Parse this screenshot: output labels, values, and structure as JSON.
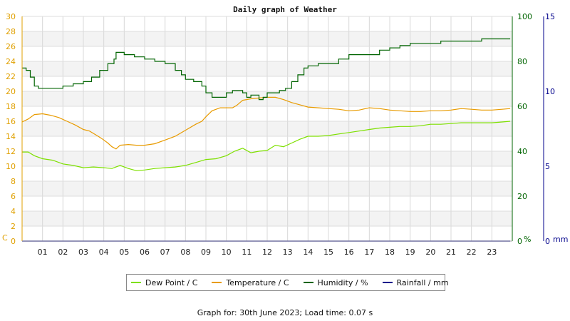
{
  "chart_data": {
    "type": "line",
    "title": "Daily graph of Weather",
    "x_ticks": [
      "01",
      "02",
      "03",
      "04",
      "05",
      "06",
      "07",
      "08",
      "09",
      "10",
      "11",
      "12",
      "13",
      "14",
      "15",
      "16",
      "17",
      "18",
      "19",
      "20",
      "21",
      "22",
      "23"
    ],
    "xlim": [
      0,
      24
    ],
    "left_axis": {
      "unit": "C",
      "range": [
        0,
        30
      ],
      "ticks": [
        0,
        2,
        4,
        6,
        8,
        10,
        12,
        14,
        16,
        18,
        20,
        22,
        24,
        26,
        28,
        30
      ],
      "color": "#e0a000"
    },
    "right_axis_humidity": {
      "unit": "%",
      "range": [
        0,
        100
      ],
      "ticks": [
        0,
        20,
        40,
        60,
        80,
        100
      ],
      "color": "#006400"
    },
    "right_axis_rain": {
      "unit": "mm",
      "range": [
        0,
        15
      ],
      "ticks": [
        0,
        5,
        10,
        15
      ],
      "color": "#00008b"
    },
    "grid": true,
    "legend_position": "bottom",
    "series": [
      {
        "name": "Dew Point / C",
        "color": "#7ee000",
        "axis": "left",
        "x": [
          0,
          0.3,
          0.6,
          1.0,
          1.5,
          2.0,
          2.5,
          3.0,
          3.5,
          4.0,
          4.4,
          4.8,
          5.2,
          5.6,
          6.0,
          6.5,
          7.0,
          7.5,
          8.0,
          8.5,
          9.0,
          9.5,
          10.0,
          10.4,
          10.8,
          11.2,
          11.6,
          12.0,
          12.4,
          12.8,
          13.2,
          13.6,
          14.0,
          14.5,
          15.0,
          15.5,
          16.0,
          16.5,
          17.0,
          17.5,
          18.0,
          18.5,
          19.0,
          19.5,
          20.0,
          20.5,
          21.0,
          21.5,
          22.0,
          22.5,
          23.0,
          23.5,
          23.9
        ],
        "y": [
          11.9,
          11.9,
          11.4,
          11.0,
          10.8,
          10.3,
          10.1,
          9.8,
          9.9,
          9.8,
          9.7,
          10.1,
          9.7,
          9.4,
          9.5,
          9.7,
          9.8,
          9.9,
          10.1,
          10.5,
          10.9,
          11.0,
          11.4,
          12.0,
          12.4,
          11.8,
          12.0,
          12.1,
          12.8,
          12.6,
          13.1,
          13.6,
          14.0,
          14.0,
          14.1,
          14.3,
          14.5,
          14.7,
          14.9,
          15.1,
          15.2,
          15.3,
          15.3,
          15.4,
          15.6,
          15.6,
          15.7,
          15.8,
          15.8,
          15.8,
          15.8,
          15.9,
          16.0
        ]
      },
      {
        "name": "Temperature / C",
        "color": "#e89b00",
        "axis": "left",
        "x": [
          0,
          0.3,
          0.6,
          1.0,
          1.4,
          1.8,
          2.2,
          2.6,
          3.0,
          3.3,
          3.6,
          3.9,
          4.2,
          4.4,
          4.6,
          4.8,
          5.2,
          5.6,
          6.0,
          6.5,
          7.0,
          7.5,
          8.0,
          8.5,
          8.8,
          9.0,
          9.3,
          9.7,
          10.0,
          10.3,
          10.5,
          10.8,
          11.2,
          11.6,
          12.0,
          12.4,
          12.8,
          13.2,
          13.6,
          14.0,
          14.5,
          15.0,
          15.5,
          16.0,
          16.5,
          17.0,
          17.5,
          18.0,
          18.5,
          19.0,
          19.5,
          20.0,
          20.5,
          21.0,
          21.5,
          22.0,
          22.5,
          23.0,
          23.5,
          23.9
        ],
        "y": [
          15.9,
          16.3,
          16.9,
          17.0,
          16.8,
          16.5,
          16.0,
          15.5,
          14.9,
          14.7,
          14.2,
          13.7,
          13.1,
          12.6,
          12.3,
          12.8,
          12.9,
          12.8,
          12.8,
          13.0,
          13.5,
          14.0,
          14.8,
          15.6,
          16.0,
          16.6,
          17.4,
          17.8,
          17.8,
          17.8,
          18.1,
          18.8,
          19.0,
          19.1,
          19.2,
          19.2,
          18.9,
          18.5,
          18.2,
          17.9,
          17.8,
          17.7,
          17.6,
          17.4,
          17.5,
          17.8,
          17.7,
          17.5,
          17.4,
          17.3,
          17.3,
          17.4,
          17.4,
          17.5,
          17.7,
          17.6,
          17.5,
          17.5,
          17.6,
          17.7
        ]
      },
      {
        "name": "Humidity / %",
        "color": "#006400",
        "axis": "right",
        "x": [
          0,
          0.2,
          0.4,
          0.6,
          0.8,
          1.0,
          1.5,
          2.0,
          2.5,
          3.0,
          3.4,
          3.8,
          4.2,
          4.5,
          4.6,
          4.8,
          5.0,
          5.5,
          6.0,
          6.5,
          7.0,
          7.5,
          7.8,
          8.0,
          8.4,
          8.8,
          9.0,
          9.3,
          9.6,
          10.0,
          10.3,
          10.6,
          10.8,
          11.0,
          11.2,
          11.4,
          11.6,
          11.8,
          12.0,
          12.3,
          12.6,
          12.9,
          13.2,
          13.5,
          13.8,
          14.0,
          14.5,
          15.0,
          15.5,
          16.0,
          16.5,
          17.0,
          17.5,
          18.0,
          18.5,
          19.0,
          19.5,
          20.0,
          20.5,
          21.0,
          21.5,
          22.0,
          22.5,
          23.0,
          23.5,
          23.9
        ],
        "y": [
          77,
          76,
          73,
          69,
          68,
          68,
          68,
          69,
          70,
          71,
          73,
          76,
          79,
          81,
          84,
          84,
          83,
          82,
          81,
          80,
          79,
          76,
          74,
          72,
          71,
          69,
          66,
          64,
          64,
          66,
          67,
          67,
          66,
          64,
          65,
          65,
          63,
          64,
          66,
          66,
          67,
          68,
          71,
          74,
          77,
          78,
          79,
          79,
          81,
          83,
          83,
          83,
          85,
          86,
          87,
          88,
          88,
          88,
          89,
          89,
          89,
          89,
          90,
          90,
          90,
          90
        ]
      },
      {
        "name": "Rainfall / mm",
        "color": "#00008b",
        "axis": "rain",
        "x": [
          0,
          23.9
        ],
        "y": [
          0,
          0
        ]
      }
    ],
    "footer": "Graph for: 30th June 2023; Load time: 0.07 s"
  }
}
